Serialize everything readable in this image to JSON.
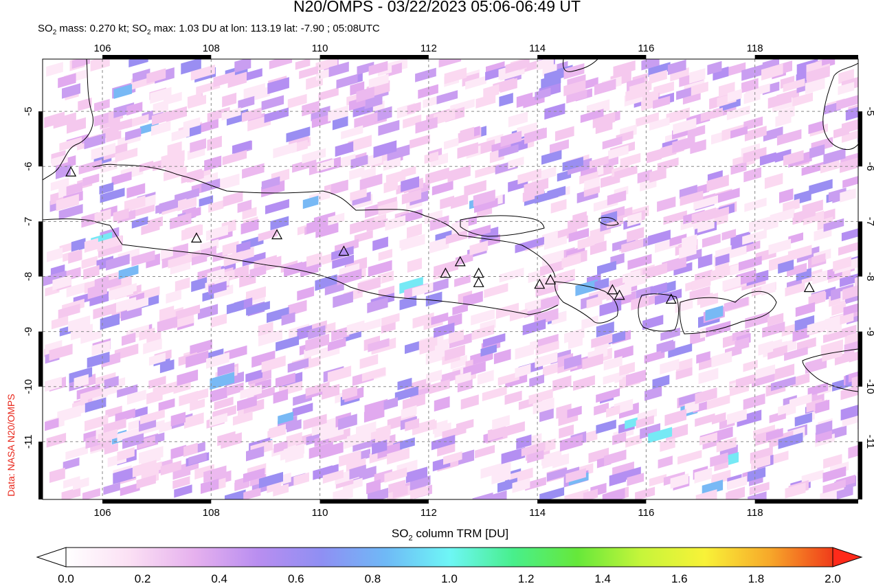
{
  "title": "N20/OMPS - 03/22/2023 05:06-06:49 UT",
  "subtitle": {
    "so2_mass_label": "SO",
    "so2_mass_text": " mass: 0.270 kt; SO",
    "so2_max_text": " max: 1.03 DU at lon: 113.19 lat: -7.90 ; 05:08UTC",
    "so2_mass_value_kt": 0.27,
    "so2_max_value_du": 1.03,
    "max_lon": 113.19,
    "max_lat": -7.9,
    "max_time": "05:08UTC"
  },
  "side_credit": "Data: NASA N20/OMPS",
  "map": {
    "lon_range": [
      104.9,
      119.9
    ],
    "lat_range": [
      -12.05,
      -4.05
    ],
    "lon_ticks": [
      "106",
      "108",
      "110",
      "112",
      "114",
      "116",
      "118"
    ],
    "lat_ticks": [
      "-5",
      "-6",
      "-7",
      "-8",
      "-9",
      "-10",
      "-11"
    ],
    "volcanoes": [
      {
        "lon": 105.42,
        "lat": -6.1
      },
      {
        "lon": 107.73,
        "lat": -7.3
      },
      {
        "lon": 109.21,
        "lat": -7.24
      },
      {
        "lon": 110.44,
        "lat": -7.54
      },
      {
        "lon": 112.31,
        "lat": -7.94
      },
      {
        "lon": 112.58,
        "lat": -7.73
      },
      {
        "lon": 112.92,
        "lat": -7.94
      },
      {
        "lon": 112.92,
        "lat": -8.11
      },
      {
        "lon": 114.04,
        "lat": -8.14
      },
      {
        "lon": 114.24,
        "lat": -8.06
      },
      {
        "lon": 115.38,
        "lat": -8.24
      },
      {
        "lon": 115.51,
        "lat": -8.34
      },
      {
        "lon": 116.46,
        "lat": -8.41
      },
      {
        "lon": 119.0,
        "lat": -8.2
      }
    ]
  },
  "colorbar": {
    "title_prefix": "SO",
    "title_suffix": " column TRM [DU]",
    "ticks": [
      "0.0",
      "0.2",
      "0.4",
      "0.6",
      "0.8",
      "1.0",
      "1.2",
      "1.4",
      "1.6",
      "1.8",
      "2.0"
    ],
    "min": 0.0,
    "max": 2.0,
    "colors": [
      "#ffffff",
      "#fbe0f4",
      "#e6b1ee",
      "#b98ef0",
      "#8f8ff3",
      "#6fb9f6",
      "#6ef6f6",
      "#48ef8c",
      "#66e83a",
      "#c6f53a",
      "#f8f238",
      "#f7a92a",
      "#f03c1a"
    ]
  }
}
